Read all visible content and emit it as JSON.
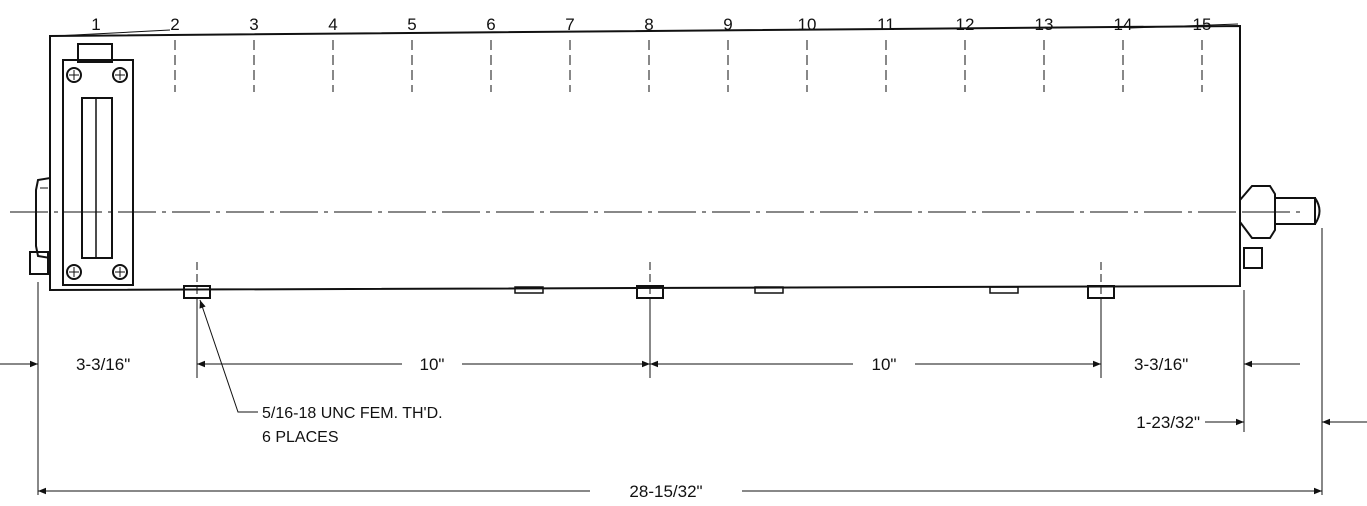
{
  "position_numbers": [
    "1",
    "2",
    "3",
    "4",
    "5",
    "6",
    "7",
    "8",
    "9",
    "10",
    "11",
    "12",
    "13",
    "14",
    "15"
  ],
  "dimensions": {
    "left_offset": "3-3/16\"",
    "spacing_1": "10\"",
    "spacing_2": "10\"",
    "right_offset": "3-3/16\"",
    "fitting_length": "1-23/32\"",
    "overall_length": "28-15/32\""
  },
  "thread_note": {
    "line1": "5/16-18 UNC FEM. TH'D.",
    "line2": "6 PLACES"
  }
}
